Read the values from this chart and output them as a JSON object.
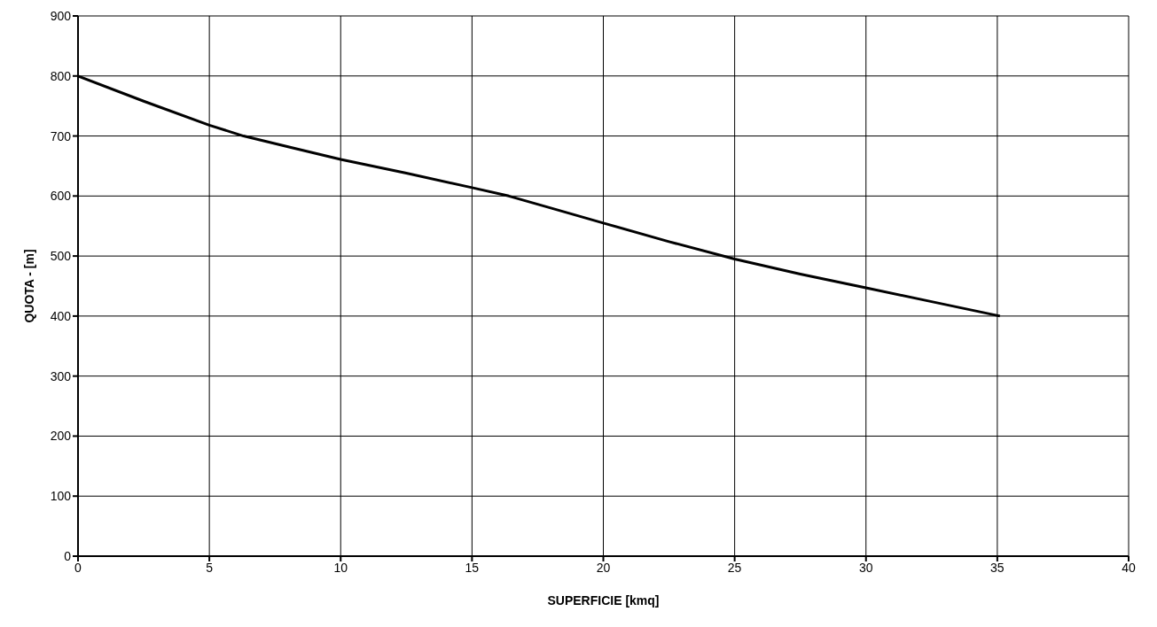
{
  "chart_data": {
    "type": "line",
    "xlabel": "SUPERFICIE [kmq]",
    "ylabel": "QUOTA - [m]",
    "series": [
      {
        "color": "#000000",
        "x": [
          0,
          2.5,
          5,
          6.3,
          8,
          10,
          12.5,
          15,
          16.4,
          18,
          20,
          22.5,
          25,
          27.5,
          30,
          32.5,
          35.1
        ],
        "values": [
          800,
          758,
          718,
          700,
          682,
          661,
          638,
          614,
          600,
          580,
          555,
          524,
          495,
          470,
          447,
          424,
          400
        ]
      }
    ],
    "xlim": [
      0,
      40
    ],
    "ylim": [
      0,
      900
    ],
    "xticks": [
      0,
      5,
      10,
      15,
      20,
      25,
      30,
      35,
      40
    ],
    "yticks": [
      0,
      100,
      200,
      300,
      400,
      500,
      600,
      700,
      800,
      900
    ],
    "grid": true,
    "marker": "none",
    "line_style": "solid"
  }
}
